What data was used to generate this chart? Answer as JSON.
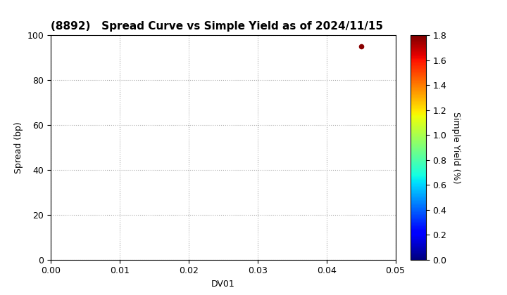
{
  "title": "(8892)   Spread Curve vs Simple Yield as of 2024/11/15",
  "xlabel": "DV01",
  "ylabel": "Spread (bp)",
  "colorbar_label": "Simple Yield (%)",
  "xlim": [
    0.0,
    0.05
  ],
  "ylim": [
    0,
    100
  ],
  "xticks": [
    0.0,
    0.01,
    0.02,
    0.03,
    0.04,
    0.05
  ],
  "yticks": [
    0,
    20,
    40,
    60,
    80,
    100
  ],
  "scatter_x": [
    0.045
  ],
  "scatter_y": [
    95
  ],
  "scatter_color_value": [
    1.78
  ],
  "colorbar_vmin": 0.0,
  "colorbar_vmax": 1.8,
  "colorbar_ticks": [
    0.0,
    0.2,
    0.4,
    0.6,
    0.8,
    1.0,
    1.2,
    1.4,
    1.6,
    1.8
  ],
  "grid_color": "#b0b0b0",
  "background_color": "#ffffff",
  "title_fontsize": 11,
  "axis_fontsize": 9,
  "tick_fontsize": 9,
  "colorbar_fontsize": 9,
  "marker_size": 20
}
